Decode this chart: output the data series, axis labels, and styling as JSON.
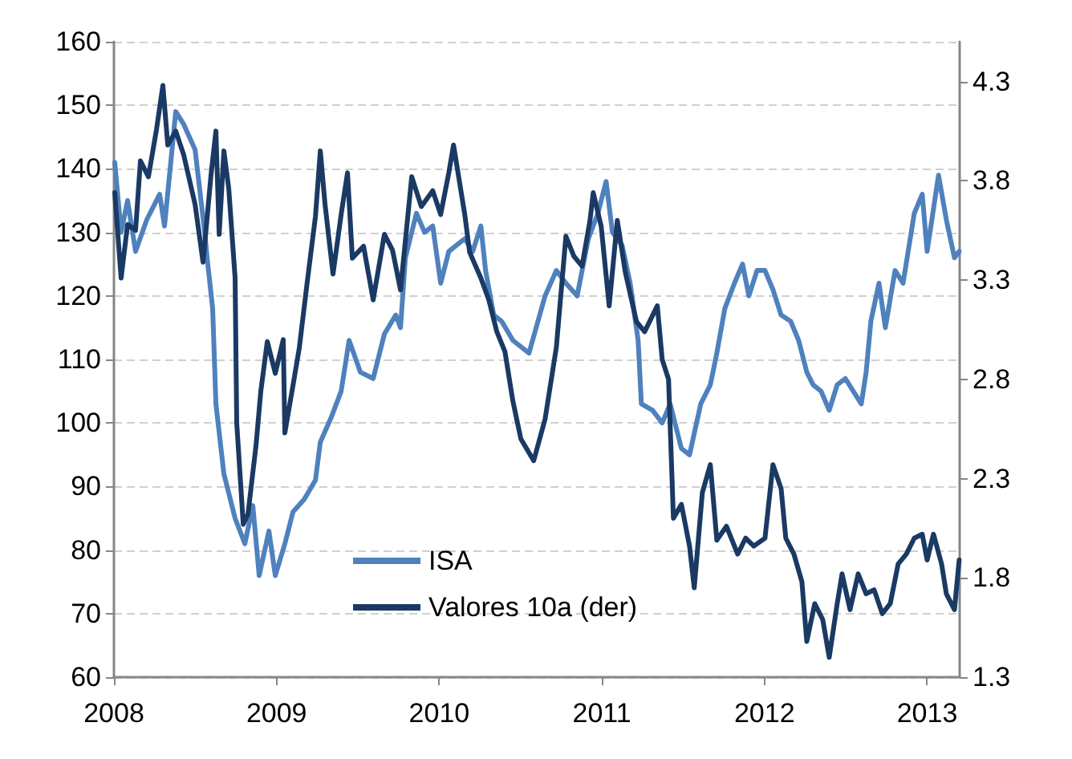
{
  "chart_data": {
    "type": "line",
    "xlim": [
      2008,
      2013.2
    ],
    "xticks": [
      2008,
      2009,
      2010,
      2011,
      2012,
      2013
    ],
    "ylim": [
      60,
      160
    ],
    "yticks": [
      60,
      70,
      80,
      90,
      100,
      110,
      120,
      130,
      140,
      150,
      160
    ],
    "y2lim": [
      1.3,
      4.5
    ],
    "y2ticks": [
      1.3,
      1.8,
      2.3,
      2.8,
      3.3,
      3.8,
      4.3
    ],
    "grid": "y",
    "legend": "bottom",
    "marker": "none",
    "line_style": "solid",
    "series": [
      {
        "name": "ISA",
        "color": "#4f81bd",
        "x": [
          2008.005,
          2008.044,
          2008.084,
          2008.133,
          2008.202,
          2008.281,
          2008.311,
          2008.38,
          2008.429,
          2008.499,
          2008.558,
          2008.577,
          2008.607,
          2008.627,
          2008.676,
          2008.745,
          2008.805,
          2008.854,
          2008.893,
          2008.953,
          2008.992,
          2009.051,
          2009.101,
          2009.17,
          2009.239,
          2009.269,
          2009.338,
          2009.397,
          2009.446,
          2009.515,
          2009.594,
          2009.663,
          2009.733,
          2009.762,
          2009.792,
          2009.86,
          2009.91,
          2009.96,
          2010.009,
          2010.059,
          2010.108,
          2010.157,
          2010.206,
          2010.256,
          2010.285,
          2010.335,
          2010.384,
          2010.453,
          2010.552,
          2010.651,
          2010.72,
          2010.779,
          2010.848,
          2010.917,
          2010.976,
          2011.026,
          2011.065,
          2011.124,
          2011.174,
          2011.223,
          2011.243,
          2011.312,
          2011.371,
          2011.42,
          2011.489,
          2011.539,
          2011.608,
          2011.667,
          2011.707,
          2011.756,
          2011.815,
          2011.865,
          2011.904,
          2011.954,
          2012.003,
          2012.052,
          2012.102,
          2012.161,
          2012.21,
          2012.26,
          2012.299,
          2012.348,
          2012.398,
          2012.447,
          2012.497,
          2012.546,
          2012.595,
          2012.625,
          2012.654,
          2012.704,
          2012.743,
          2012.803,
          2012.852,
          2012.921,
          2012.97,
          2013,
          2013.07,
          2013.118,
          2013.168,
          2013.197
        ],
        "values": [
          141,
          130,
          135,
          127,
          132,
          136,
          131,
          149,
          147,
          143,
          130,
          125,
          118,
          103,
          92,
          85,
          81,
          87,
          76,
          83,
          76,
          81,
          86,
          88,
          91,
          97,
          101,
          105,
          113,
          108,
          107,
          114,
          117,
          115,
          126,
          133,
          130,
          131,
          122,
          127,
          128,
          129,
          127,
          131,
          124,
          117,
          116,
          113,
          111,
          120,
          124,
          122,
          120,
          129,
          133,
          138,
          130,
          128,
          122,
          113,
          103,
          102,
          100,
          103,
          96,
          95,
          103,
          106,
          111,
          118,
          122,
          125,
          120,
          124,
          124,
          121,
          117,
          116,
          113,
          108,
          106,
          105,
          102,
          106,
          107,
          105,
          103,
          108,
          116,
          122,
          115,
          124,
          122,
          133,
          136,
          127,
          139,
          132,
          126,
          127
        ]
      },
      {
        "name": "Valores 10a (der)",
        "color": "#1a3a64",
        "axis": "y2",
        "x": [
          2008.005,
          2008.044,
          2008.084,
          2008.133,
          2008.163,
          2008.212,
          2008.262,
          2008.301,
          2008.331,
          2008.38,
          2008.429,
          2008.499,
          2008.548,
          2008.597,
          2008.627,
          2008.647,
          2008.676,
          2008.706,
          2008.745,
          2008.755,
          2008.795,
          2008.824,
          2008.874,
          2008.903,
          2008.943,
          2008.992,
          2009.041,
          2009.051,
          2009.101,
          2009.14,
          2009.19,
          2009.239,
          2009.269,
          2009.298,
          2009.347,
          2009.397,
          2009.436,
          2009.466,
          2009.535,
          2009.594,
          2009.663,
          2009.713,
          2009.762,
          2009.831,
          2009.89,
          2009.96,
          2010.009,
          2010.059,
          2010.088,
          2010.157,
          2010.187,
          2010.256,
          2010.305,
          2010.354,
          2010.404,
          2010.453,
          2010.502,
          2010.581,
          2010.651,
          2010.72,
          2010.779,
          2010.828,
          2010.878,
          2010.927,
          2010.947,
          2010.996,
          2011.045,
          2011.095,
          2011.144,
          2011.213,
          2011.263,
          2011.341,
          2011.371,
          2011.41,
          2011.44,
          2011.489,
          2011.539,
          2011.568,
          2011.618,
          2011.667,
          2011.707,
          2011.766,
          2011.835,
          2011.884,
          2011.934,
          2012.003,
          2012.052,
          2012.102,
          2012.131,
          2012.181,
          2012.23,
          2012.26,
          2012.309,
          2012.358,
          2012.398,
          2012.447,
          2012.477,
          2012.526,
          2012.576,
          2012.625,
          2012.674,
          2012.724,
          2012.773,
          2012.822,
          2012.872,
          2012.921,
          2012.97,
          2013,
          2013.039,
          2013.089,
          2013.118,
          2013.168,
          2013.197
        ],
        "values": [
          3.74,
          3.31,
          3.58,
          3.55,
          3.9,
          3.82,
          4.06,
          4.28,
          3.98,
          4.05,
          3.93,
          3.68,
          3.39,
          3.83,
          4.05,
          3.53,
          3.95,
          3.76,
          3.31,
          2.58,
          2.07,
          2.12,
          2.47,
          2.74,
          2.99,
          2.83,
          3.0,
          2.53,
          2.77,
          2.96,
          3.3,
          3.62,
          3.95,
          3.68,
          3.33,
          3.63,
          3.84,
          3.41,
          3.47,
          3.2,
          3.53,
          3.45,
          3.25,
          3.82,
          3.67,
          3.75,
          3.63,
          3.84,
          3.98,
          3.63,
          3.44,
          3.31,
          3.2,
          3.04,
          2.94,
          2.69,
          2.5,
          2.39,
          2.6,
          2.96,
          3.52,
          3.42,
          3.37,
          3.6,
          3.74,
          3.57,
          3.17,
          3.6,
          3.34,
          3.09,
          3.04,
          3.17,
          2.9,
          2.8,
          2.1,
          2.17,
          1.96,
          1.75,
          2.23,
          2.37,
          1.99,
          2.06,
          1.92,
          2.0,
          1.96,
          2.0,
          2.37,
          2.25,
          2.0,
          1.92,
          1.78,
          1.48,
          1.67,
          1.59,
          1.4,
          1.67,
          1.82,
          1.64,
          1.82,
          1.72,
          1.74,
          1.62,
          1.67,
          1.87,
          1.92,
          2.0,
          2.02,
          1.89,
          2.02,
          1.87,
          1.72,
          1.64,
          1.89
        ]
      }
    ]
  }
}
